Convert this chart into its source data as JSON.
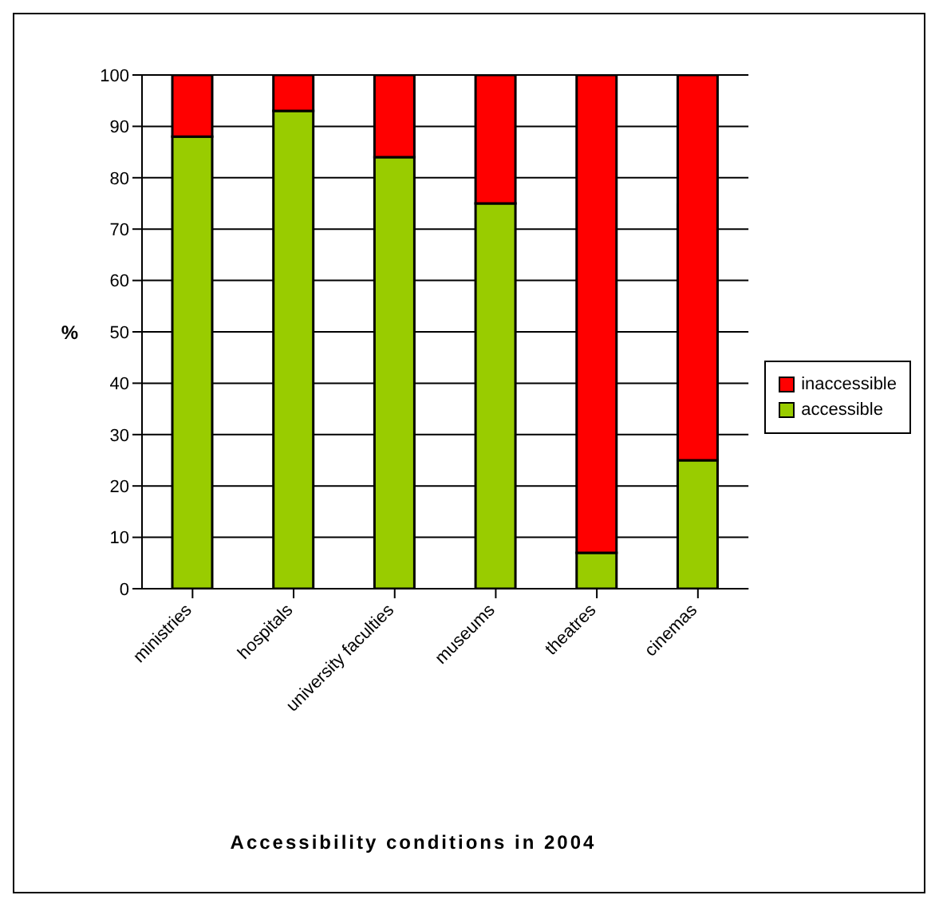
{
  "chart_data": {
    "type": "bar",
    "title": "Accessibility conditions in 2004",
    "ylabel": "%",
    "categories": [
      "ministries",
      "hospitals",
      "university faculties",
      "museums",
      "theatres",
      "cinemas"
    ],
    "stacked": true,
    "series": [
      {
        "name": "accessible",
        "color": "#99cc00",
        "values": [
          88,
          93,
          84,
          75,
          7,
          25
        ]
      },
      {
        "name": "inaccessible",
        "color": "#ff0000",
        "values": [
          12,
          7,
          16,
          25,
          93,
          75
        ]
      }
    ],
    "ylim": [
      0,
      100
    ],
    "yticks": [
      0,
      10,
      20,
      30,
      40,
      50,
      60,
      70,
      80,
      90,
      100
    ],
    "grid": "y",
    "legend": "right"
  }
}
